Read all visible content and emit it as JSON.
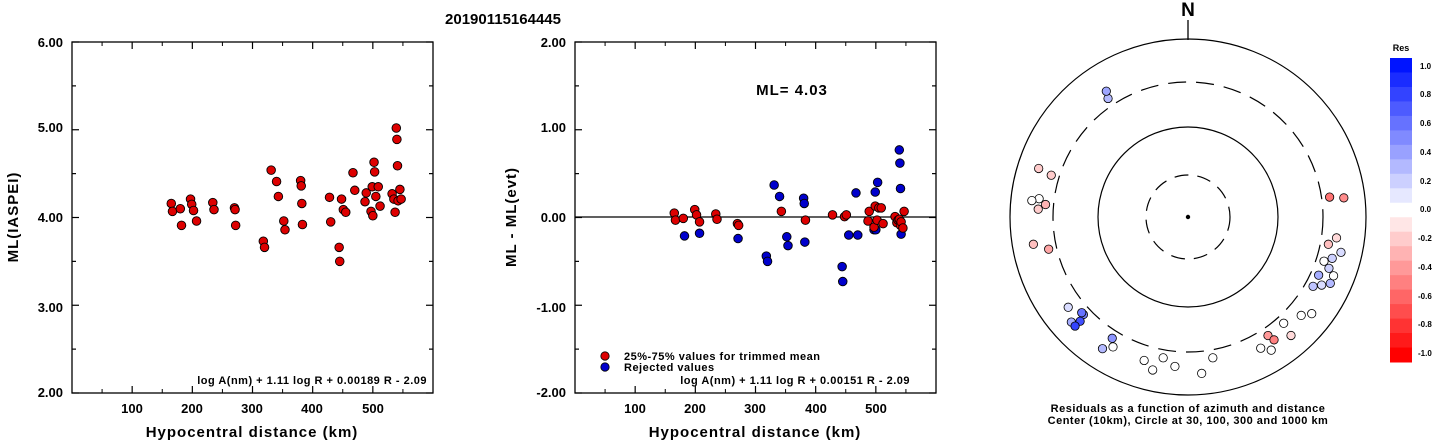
{
  "title": "20190115164445",
  "left_plot": {
    "ylabel": "ML(IASPEI)",
    "xlabel": "Hypocentral distance (km)",
    "formula": "log A(nm) + 1.11 log R + 0.00189 R - 2.09",
    "ytick_labels": [
      "2.00",
      "3.00",
      "4.00",
      "5.00",
      "6.00"
    ],
    "xtick_labels": [
      "100",
      "200",
      "300",
      "400",
      "500"
    ]
  },
  "middle_plot": {
    "ylabel": "ML - ML(evt)",
    "xlabel": "Hypocentral distance (km)",
    "formula": "log A(nm) + 1.11 log R + 0.00151 R - 2.09",
    "ml_label": "ML= 4.03",
    "legend": [
      "25%-75% values for trimmed mean",
      "Rejected values"
    ],
    "ytick_labels": [
      "-2.00",
      "-1.00",
      "0.00",
      "1.00",
      "2.00"
    ],
    "xtick_labels": [
      "100",
      "200",
      "300",
      "400",
      "500"
    ]
  },
  "right_plot": {
    "north_label": "N",
    "caption_line1": "Residuals as a function of azimuth and distance",
    "caption_line2": "Center (10km), Circle at 30, 100, 300 and 1000 km",
    "colorbar_title": "Res",
    "colorbar_labels": [
      "1.0",
      "0.8",
      "0.6",
      "0.4",
      "0.2",
      "0.0",
      "-0.2",
      "-0.4",
      "-0.6",
      "-0.8",
      "-1.0"
    ]
  },
  "colors": {
    "red": "#dd0000",
    "blue": "#0000cc",
    "axis": "#000000"
  },
  "chart_data": [
    {
      "type": "scatter",
      "xlim": [
        0,
        600
      ],
      "ylim": [
        2,
        6
      ],
      "points": [
        [
          165,
          4.16
        ],
        [
          167,
          4.07
        ],
        [
          180,
          4.1
        ],
        [
          182,
          3.91
        ],
        [
          197,
          4.21
        ],
        [
          199,
          4.15
        ],
        [
          202,
          4.08
        ],
        [
          207,
          3.96
        ],
        [
          234,
          4.17
        ],
        [
          236,
          4.09
        ],
        [
          270,
          4.11
        ],
        [
          271,
          4.09
        ],
        [
          272,
          3.91
        ],
        [
          318,
          3.73
        ],
        [
          320,
          3.66
        ],
        [
          331,
          4.54
        ],
        [
          340,
          4.41
        ],
        [
          343,
          4.24
        ],
        [
          352,
          3.96
        ],
        [
          354,
          3.86
        ],
        [
          380,
          4.42
        ],
        [
          381,
          4.36
        ],
        [
          382,
          4.16
        ],
        [
          383,
          3.92
        ],
        [
          428,
          4.23
        ],
        [
          430,
          3.95
        ],
        [
          444,
          3.66
        ],
        [
          445,
          3.5
        ],
        [
          448,
          4.21
        ],
        [
          451,
          4.09
        ],
        [
          455,
          4.06
        ],
        [
          467,
          4.51
        ],
        [
          470,
          4.31
        ],
        [
          487,
          4.18
        ],
        [
          489,
          4.28
        ],
        [
          497,
          4.07
        ],
        [
          499,
          4.35
        ],
        [
          500,
          4.02
        ],
        [
          502,
          4.63
        ],
        [
          503,
          4.52
        ],
        [
          505,
          4.24
        ],
        [
          509,
          4.35
        ],
        [
          512,
          4.13
        ],
        [
          532,
          4.27
        ],
        [
          535,
          4.21
        ],
        [
          537,
          4.06
        ],
        [
          539,
          5.02
        ],
        [
          540,
          4.89
        ],
        [
          541,
          4.59
        ],
        [
          542,
          4.19
        ],
        [
          545,
          4.32
        ],
        [
          547,
          4.21
        ]
      ]
    },
    {
      "type": "scatter",
      "xlim": [
        0,
        600
      ],
      "ylim": [
        -2,
        2
      ],
      "hline": 0,
      "series": [
        {
          "name": "25%-75% values for trimmed mean",
          "points": [
            [
              165,
              0.05
            ],
            [
              167,
              -0.03
            ],
            [
              180,
              -0.01
            ],
            [
              199,
              0.09
            ],
            [
              202,
              0.03
            ],
            [
              207,
              -0.05
            ],
            [
              234,
              0.04
            ],
            [
              236,
              -0.02
            ],
            [
              270,
              -0.07
            ],
            [
              272,
              -0.09
            ],
            [
              343,
              0.07
            ],
            [
              383,
              -0.03
            ],
            [
              428,
              0.03
            ],
            [
              448,
              0.01
            ],
            [
              451,
              0.03
            ],
            [
              487,
              -0.04
            ],
            [
              489,
              0.07
            ],
            [
              497,
              -0.11
            ],
            [
              499,
              0.13
            ],
            [
              502,
              -0.03
            ],
            [
              505,
              0.11
            ],
            [
              509,
              0.11
            ],
            [
              512,
              -0.07
            ],
            [
              532,
              0.01
            ],
            [
              535,
              -0.06
            ],
            [
              537,
              -0.03
            ],
            [
              539,
              -0.02
            ],
            [
              541,
              -0.09
            ],
            [
              542,
              -0.05
            ],
            [
              545,
              -0.12
            ],
            [
              547,
              0.07
            ]
          ]
        },
        {
          "name": "Rejected values",
          "points": [
            [
              182,
              -0.21
            ],
            [
              207,
              -0.18
            ],
            [
              271,
              -0.24
            ],
            [
              318,
              -0.44
            ],
            [
              320,
              -0.5
            ],
            [
              331,
              0.37
            ],
            [
              340,
              0.24
            ],
            [
              352,
              -0.22
            ],
            [
              354,
              -0.32
            ],
            [
              380,
              0.22
            ],
            [
              381,
              0.16
            ],
            [
              382,
              -0.28
            ],
            [
              444,
              -0.56
            ],
            [
              445,
              -0.73
            ],
            [
              455,
              -0.2
            ],
            [
              467,
              0.28
            ],
            [
              470,
              -0.2
            ],
            [
              497,
              -0.14
            ],
            [
              499,
              0.29
            ],
            [
              500,
              -0.14
            ],
            [
              503,
              0.4
            ],
            [
              539,
              0.77
            ],
            [
              540,
              0.62
            ],
            [
              541,
              0.33
            ],
            [
              542,
              -0.19
            ]
          ]
        }
      ]
    },
    {
      "type": "scatter",
      "polar": true,
      "rings_km": [
        30,
        100,
        300,
        1000
      ],
      "center_km": 10,
      "points": [
        [
          326,
          0.3
        ],
        [
          327,
          0.38
        ],
        [
          288,
          -0.2
        ],
        [
          287,
          -0.2
        ],
        [
          277,
          0.0
        ],
        [
          276,
          0.0
        ],
        [
          275,
          -0.3
        ],
        [
          273,
          -0.2
        ],
        [
          260,
          -0.25
        ],
        [
          257,
          -0.35
        ],
        [
          233,
          0.15
        ],
        [
          228,
          0.35
        ],
        [
          227,
          0.55
        ],
        [
          226,
          0.75
        ],
        [
          226,
          0.8
        ],
        [
          228,
          0.6
        ],
        [
          210,
          0.0
        ],
        [
          213,
          0.3
        ],
        [
          212,
          0.45
        ],
        [
          197,
          0.0
        ],
        [
          193,
          0.0
        ],
        [
          190,
          0.0
        ],
        [
          185,
          0.0
        ],
        [
          175,
          0.0
        ],
        [
          170,
          0.0
        ],
        [
          151,
          0.0
        ],
        [
          148,
          0.0
        ],
        [
          146,
          -0.4
        ],
        [
          145,
          -0.5
        ],
        [
          139,
          -0.15
        ],
        [
          138,
          -0.05
        ],
        [
          131,
          0.0
        ],
        [
          128,
          0.0
        ],
        [
          119,
          0.25
        ],
        [
          117,
          0.15
        ],
        [
          115,
          0.3
        ],
        [
          114,
          0.35
        ],
        [
          110,
          0.2
        ],
        [
          112,
          0.0
        ],
        [
          108,
          0.0
        ],
        [
          106,
          0.2
        ],
        [
          103,
          0.15
        ],
        [
          101,
          -0.25
        ],
        [
          98,
          -0.15
        ],
        [
          83,
          -0.45
        ],
        [
          82,
          -0.55
        ]
      ]
    }
  ]
}
